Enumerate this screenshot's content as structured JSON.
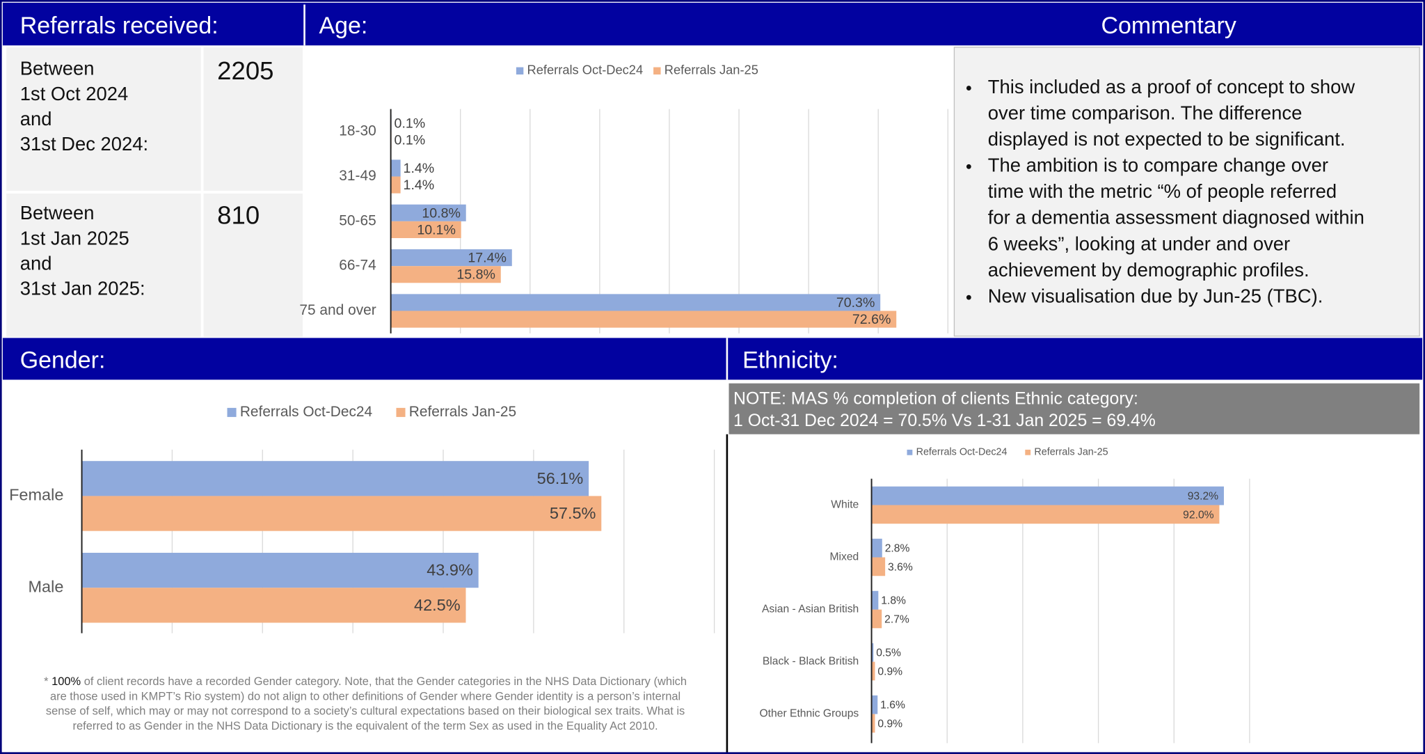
{
  "referrals": {
    "title": "Referrals received:",
    "rows": [
      {
        "period": [
          "Between",
          "1st Oct 2024",
          "and",
          "31st Dec 2024:"
        ],
        "count": 2205
      },
      {
        "period": [
          "Between",
          "1st Jan 2025",
          "and",
          "31st Jan 2025:"
        ],
        "count": 810
      }
    ]
  },
  "commentary": {
    "title": "Commentary",
    "bullets": [
      [
        "This included as a proof of concept to show",
        "over time comparison. The difference",
        "displayed is not expected to be significant."
      ],
      [
        "The ambition is to compare change over",
        "time with the metric “% of people referred",
        "for a dementia assessment diagnosed within",
        "6 weeks”, looking at under and over",
        "achievement by demographic profiles."
      ],
      [
        "New visualisation due by Jun-25 (TBC)."
      ]
    ]
  },
  "chart_data": [
    {
      "type": "hbar",
      "title": "Age:",
      "categories": [
        "18-30",
        "31-49",
        "50-65",
        "66-74",
        "75 and over"
      ],
      "series": [
        {
          "name": "Referrals Oct-Dec24",
          "color": "#8faadc",
          "values": [
            0.1,
            1.4,
            10.8,
            17.4,
            70.3
          ],
          "value_labels": [
            "0.1%",
            "1.4%",
            "10.8%",
            "17.4%",
            "70.3%"
          ]
        },
        {
          "name": "Referrals Jan-25",
          "color": "#f4b183",
          "values": [
            0.1,
            1.4,
            10.1,
            15.8,
            72.6
          ],
          "value_labels": [
            "0.1%",
            "1.4%",
            "10.1%",
            "15.8%",
            "72.6%"
          ]
        }
      ],
      "xlim": [
        0,
        80
      ],
      "xticks": [
        0,
        10,
        20,
        30,
        40,
        50,
        60,
        70,
        80
      ],
      "grid": true
    },
    {
      "type": "hbar",
      "title": "Gender:",
      "categories": [
        "Female",
        "Male"
      ],
      "series": [
        {
          "name": "Referrals Oct-Dec24",
          "color": "#8faadc",
          "values": [
            56.1,
            43.9
          ],
          "value_labels": [
            "56.1%",
            "43.9%"
          ]
        },
        {
          "name": "Referrals Jan-25",
          "color": "#f4b183",
          "values": [
            57.5,
            42.5
          ],
          "value_labels": [
            "57.5%",
            "42.5%"
          ]
        }
      ],
      "xlim": [
        0,
        70
      ],
      "xticks": [
        0,
        10,
        20,
        30,
        40,
        50,
        60,
        70
      ],
      "grid": true,
      "footnote": {
        "prefix": "* ",
        "highlight": "100%",
        "lines": [
          " of client records have a recorded Gender category. Note, that the Gender categories in the NHS Data Dictionary (which",
          "are those used in KMPT’s Rio system) do not align to other definitions of Gender where Gender identity is a person’s internal",
          "sense of self, which may or may not correspond to a society’s cultural expectations based on their biological sex traits. What is",
          "referred to as Gender in the NHS Data Dictionary is the equivalent of the term Sex as used in the Equality Act 2010."
        ]
      }
    },
    {
      "type": "hbar",
      "title": "Ethnicity:",
      "note": [
        "NOTE: MAS % completion of clients Ethnic category:",
        "1 Oct-31 Dec 2024 = 70.5% Vs 1-31 Jan 2025 = 69.4%"
      ],
      "categories": [
        "White",
        "Mixed",
        "Asian - Asian British",
        "Black - Black British",
        "Other Ethnic Groups"
      ],
      "series": [
        {
          "name": "Referrals Oct-Dec24",
          "color": "#8faadc",
          "values": [
            93.2,
            2.8,
            1.8,
            0.5,
            1.6
          ],
          "value_labels": [
            "93.2%",
            "2.8%",
            "1.8%",
            "0.5%",
            "1.6%"
          ]
        },
        {
          "name": "Referrals Jan-25",
          "color": "#f4b183",
          "values": [
            92.0,
            3.6,
            2.7,
            0.9,
            0.9
          ],
          "value_labels": [
            "92.0%",
            "3.6%",
            "2.7%",
            "0.9%",
            "0.9%"
          ]
        }
      ],
      "xlim": [
        0,
        100
      ],
      "xticks": [
        0,
        20,
        40,
        60,
        80,
        100
      ],
      "grid": true
    }
  ]
}
